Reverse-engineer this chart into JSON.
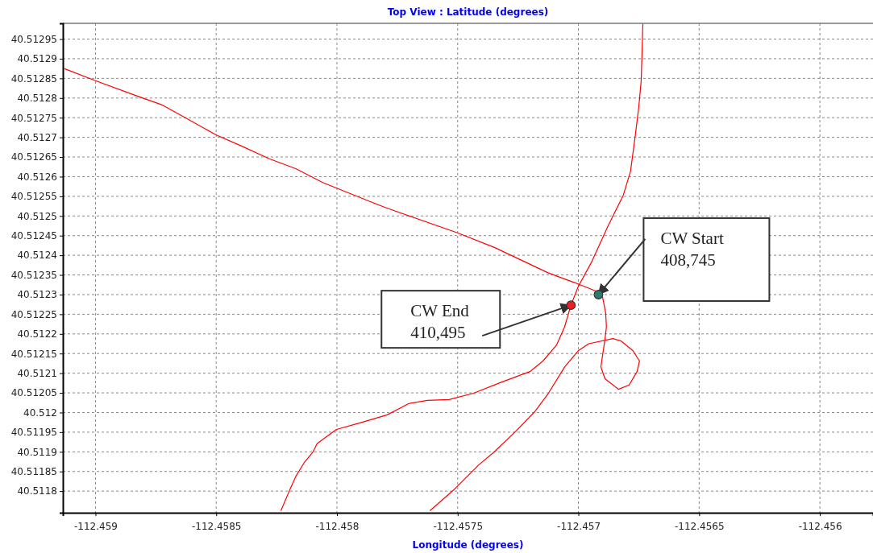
{
  "chart_data": {
    "type": "line",
    "title": "Top View : Latitude (degrees)",
    "xlabel": "Longitude (degrees)",
    "xlim": [
      -112.459135,
      -112.45578
    ],
    "ylim": [
      40.511745,
      40.51299
    ],
    "xticks": [
      -112.459,
      -112.4585,
      -112.458,
      -112.4575,
      -112.457,
      -112.4565,
      -112.456
    ],
    "yticks": [
      40.5118,
      40.51185,
      40.5119,
      40.51195,
      40.512,
      40.51205,
      40.5121,
      40.51215,
      40.5122,
      40.51225,
      40.5123,
      40.51235,
      40.5124,
      40.51245,
      40.5125,
      40.51255,
      40.5126,
      40.51265,
      40.5127,
      40.51275,
      40.5128,
      40.51285,
      40.5129,
      40.51295
    ],
    "grid": true,
    "line_style": "solid",
    "series": [
      {
        "color": "#ff0000",
        "x": [
          -112.45913,
          -112.459,
          -112.458836,
          -112.458726,
          -112.458616,
          -112.458503,
          -112.458392,
          -112.458282,
          -112.458169,
          -112.458059,
          -112.457868,
          -112.457802,
          -112.457501,
          -112.457348,
          -112.457124,
          -112.457014,
          -112.456924,
          -112.456917,
          -112.4569,
          -112.456887,
          -112.456884,
          -112.45689,
          -112.4569,
          -112.456907,
          -112.45689,
          -112.456834,
          -112.45679,
          -112.456757,
          -112.456747,
          -112.456774,
          -112.456824,
          -112.456857,
          -112.456957,
          -112.457001,
          -112.457057,
          -112.457124,
          -112.457181,
          -112.457258,
          -112.457348,
          -112.457414,
          -112.457515,
          -112.457615
        ],
        "values": [
          40.512875,
          40.512844,
          40.512807,
          40.512783,
          40.512746,
          40.512707,
          40.512677,
          40.512646,
          40.51262,
          40.512585,
          40.512538,
          40.512522,
          40.512457,
          40.51242,
          40.512355,
          40.51233,
          40.512308,
          40.5123,
          40.512294,
          40.512253,
          40.512218,
          40.512186,
          40.512145,
          40.512116,
          40.512086,
          40.512059,
          40.51207,
          40.512104,
          40.512131,
          40.512157,
          40.512182,
          40.512188,
          40.512175,
          40.512157,
          40.512116,
          40.512049,
          40.512002,
          40.511953,
          40.5119,
          40.511866,
          40.511804,
          40.51175
        ]
      },
      {
        "color": "#ff0000",
        "x": [
          -112.458232,
          -112.458199,
          -112.458169,
          -112.458136,
          -112.458099,
          -112.458082,
          -112.458002,
          -112.457902,
          -112.457792,
          -112.457702,
          -112.457625,
          -112.457535,
          -112.457434,
          -112.457324,
          -112.457201,
          -112.457147,
          -112.457091,
          -112.457057,
          -112.457031,
          -112.457001,
          -112.456947,
          -112.45688,
          -112.456814,
          -112.456784,
          -112.456764,
          -112.45675,
          -112.45674,
          -112.456733
        ],
        "values": [
          40.51175,
          40.511798,
          40.511839,
          40.511872,
          40.5119,
          40.511921,
          40.511957,
          40.511974,
          40.511994,
          40.512023,
          40.512031,
          40.512033,
          40.512049,
          40.512076,
          40.512104,
          40.512131,
          40.512171,
          40.512218,
          40.512273,
          40.51232,
          40.512381,
          40.512471,
          40.512553,
          40.512614,
          40.512707,
          40.512777,
          40.512844,
          40.512989
        ]
      },
      {
        "type": "scatter",
        "marker": "circle",
        "color": "#2e7b6b",
        "x": [
          -112.456917
        ],
        "values": [
          40.5123
        ]
      },
      {
        "type": "scatter",
        "marker": "circle",
        "color": "#ee1c24",
        "x": [
          -112.457031
        ],
        "values": [
          40.512273
        ]
      }
    ],
    "annotations": [
      {
        "text": "CW Start\n408,745",
        "x": -112.456917,
        "y": 40.5123
      },
      {
        "text": "CW End\n410,495",
        "x": -112.457031,
        "y": 40.512273
      }
    ]
  }
}
